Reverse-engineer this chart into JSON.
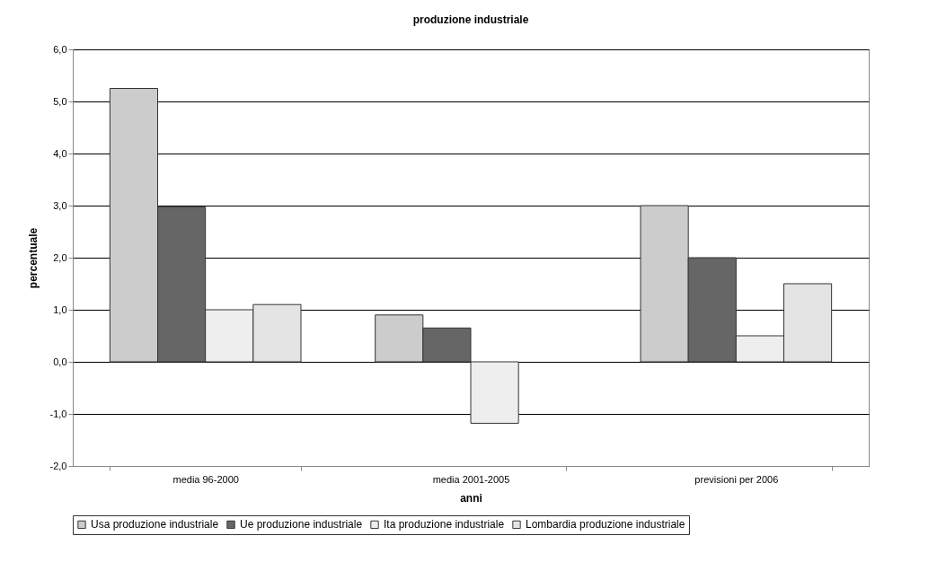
{
  "chart_data": {
    "type": "bar",
    "title": "produzione industriale",
    "xlabel": "anni",
    "ylabel": "percentuale",
    "categories": [
      "media 96-2000",
      "media 2001-2005",
      "previsioni per 2006"
    ],
    "series": [
      {
        "name": "Usa produzione industriale",
        "color": "#cccccc",
        "values": [
          5.25,
          0.9,
          3.0
        ]
      },
      {
        "name": "Ue produzione industriale",
        "color": "#666666",
        "values": [
          2.97,
          0.65,
          2.0
        ]
      },
      {
        "name": "Ita produzione industriale",
        "color": "#eeeeee",
        "values": [
          1.0,
          -1.18,
          0.5
        ]
      },
      {
        "name": "Lombardia produzione industriale",
        "color": "#e4e4e4",
        "values": [
          1.1,
          null,
          1.5
        ]
      }
    ],
    "ylim": [
      -2,
      6
    ],
    "yticks": [
      {
        "value": -2,
        "label": "-2,0"
      },
      {
        "value": -1,
        "label": "-1,0"
      },
      {
        "value": 0,
        "label": "0,0"
      },
      {
        "value": 1,
        "label": "1,0"
      },
      {
        "value": 2,
        "label": "2,0"
      },
      {
        "value": 3,
        "label": "3,0"
      },
      {
        "value": 4,
        "label": "4,0"
      },
      {
        "value": 5,
        "label": "5,0"
      },
      {
        "value": 6,
        "label": "6,0"
      }
    ],
    "grid": "y",
    "legend": "bottom"
  }
}
